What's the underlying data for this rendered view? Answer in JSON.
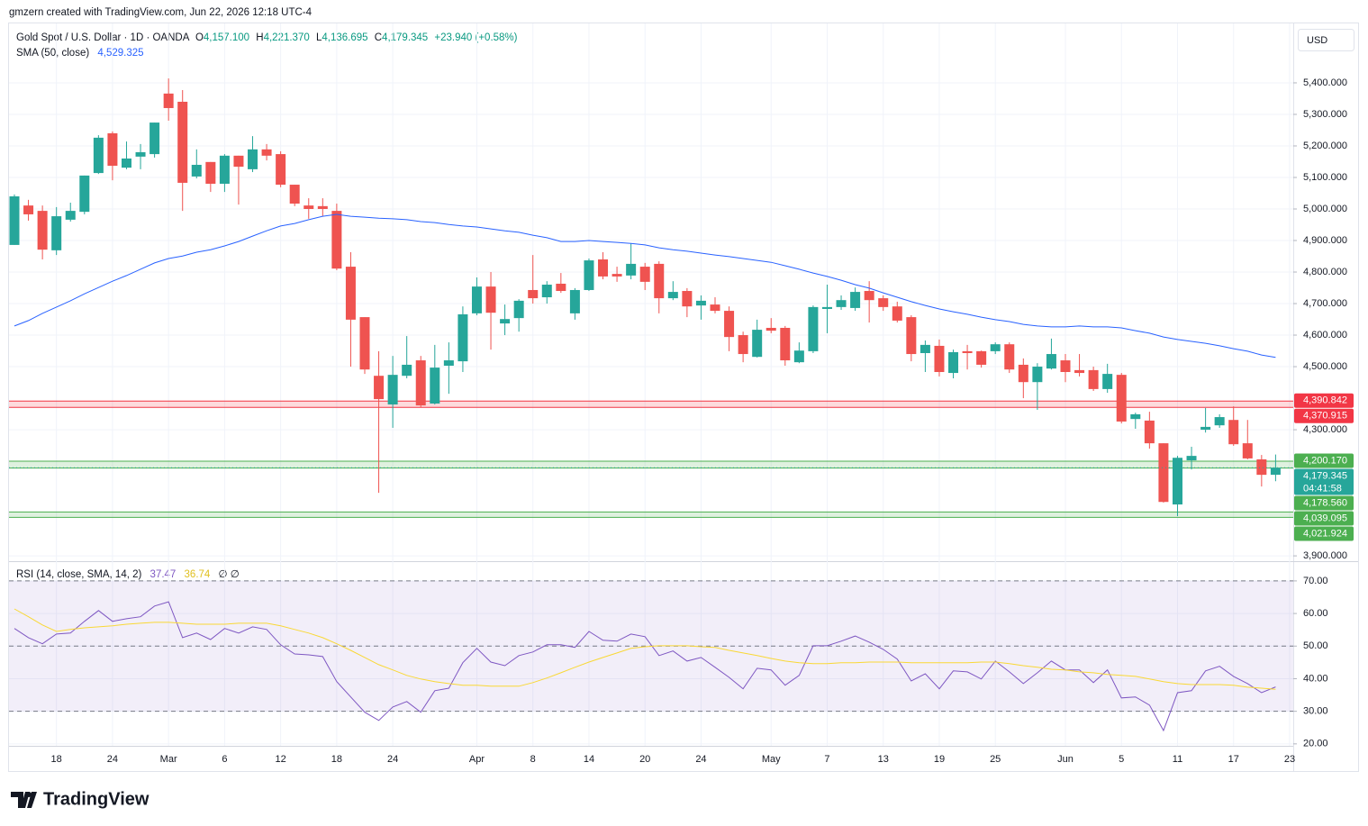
{
  "header": {
    "attribution": "gmzern created with TradingView.com, Jun 22, 2026 12:18 UTC-4",
    "symbol": "Gold Spot / U.S. Dollar · 1D · OANDA",
    "ohlc": [
      {
        "key": "O",
        "value": "4,157.100"
      },
      {
        "key": "H",
        "value": "4,221.370"
      },
      {
        "key": "L",
        "value": "4,136.695"
      },
      {
        "key": "C",
        "value": "4,179.345"
      }
    ],
    "change": "+23.940 (+0.58%)",
    "currency": "USD"
  },
  "chart_data": [
    {
      "type": "candlestick",
      "categories": [
        null,
        null,
        null,
        "18",
        null,
        null,
        null,
        "24",
        null,
        null,
        null,
        "Mar",
        null,
        null,
        null,
        "6",
        null,
        null,
        null,
        "12",
        null,
        null,
        null,
        "18",
        null,
        null,
        null,
        "24",
        null,
        null,
        null,
        null,
        null,
        "Apr",
        null,
        null,
        null,
        "8",
        null,
        null,
        null,
        "14",
        null,
        null,
        null,
        "20",
        null,
        null,
        null,
        "24",
        null,
        null,
        null,
        null,
        "May",
        null,
        null,
        null,
        "7",
        null,
        null,
        null,
        "13",
        null,
        null,
        null,
        "19",
        null,
        null,
        null,
        "25",
        null,
        null,
        null,
        null,
        "Jun",
        null,
        null,
        null,
        "5",
        null,
        null,
        null,
        "11",
        null,
        null,
        null,
        "17",
        null,
        null,
        null,
        "23"
      ],
      "open": [
        4886,
        5011,
        4994,
        4869,
        4966,
        4991,
        5114,
        5240,
        5131,
        5166,
        5174,
        5366,
        5340,
        5103,
        5149,
        5080,
        5169,
        5126,
        5189,
        5174,
        5077,
        5011,
        5009,
        4994,
        4817,
        4657,
        4471,
        4380,
        4471,
        4520,
        4383,
        4503,
        4517,
        4669,
        4754,
        4637,
        4654,
        4743,
        4720,
        4763,
        4669,
        4743,
        4840,
        4794,
        4789,
        4817,
        4826,
        4717,
        4740,
        4694,
        4697,
        4677,
        4600,
        4531,
        4623,
        4623,
        4514,
        4549,
        4683,
        4689,
        4686,
        4740,
        4717,
        4691,
        4657,
        4543,
        4566,
        4480,
        4549,
        4549,
        4549,
        4571,
        4506,
        4451,
        4494,
        4520,
        4489,
        4489,
        4429,
        4474,
        4334,
        4329,
        4257,
        4063,
        4203,
        4300,
        4314,
        4331,
        4257,
        4206,
        4157.1,
        null
      ],
      "high": [
        5046,
        5029,
        5011,
        5006,
        5020,
        5106,
        5234,
        5246,
        5214,
        5206,
        5274,
        5414,
        5377,
        5189,
        5149,
        5174,
        5169,
        5231,
        5206,
        5183,
        5077,
        5034,
        5034,
        5017,
        4863,
        4657,
        4549,
        4534,
        4597,
        4534,
        4569,
        4577,
        4691,
        4783,
        4800,
        4697,
        4714,
        4854,
        4771,
        4797,
        4749,
        4843,
        4863,
        4817,
        4891,
        4829,
        4834,
        4771,
        4749,
        4726,
        4720,
        4691,
        4611,
        4649,
        4654,
        4629,
        4577,
        4694,
        4760,
        4726,
        4751,
        4771,
        4726,
        4706,
        4663,
        4583,
        4586,
        4554,
        4569,
        4551,
        4577,
        4577,
        4526,
        4511,
        4589,
        4540,
        4540,
        4500,
        4509,
        4480,
        4354,
        4357,
        4257,
        4217,
        4246,
        4369,
        4349,
        4374,
        4331,
        4220,
        4221.37,
        null
      ],
      "low": [
        4886,
        4963,
        4840,
        4854,
        4960,
        4983,
        5111,
        5091,
        5126,
        5126,
        5163,
        5280,
        4994,
        5097,
        5054,
        5054,
        5014,
        5117,
        5154,
        5069,
        5009,
        4969,
        4977,
        4806,
        4500,
        4477,
        4100,
        4306,
        4463,
        4371,
        4380,
        4414,
        4483,
        4663,
        4554,
        4600,
        4611,
        4700,
        4700,
        4734,
        4649,
        4740,
        4777,
        4769,
        4777,
        4743,
        4669,
        4711,
        4657,
        4649,
        4669,
        4549,
        4514,
        4529,
        4606,
        4503,
        4511,
        4543,
        4606,
        4680,
        4677,
        4640,
        4677,
        4640,
        4517,
        4483,
        4469,
        4463,
        4491,
        4497,
        4540,
        4480,
        4400,
        4363,
        4491,
        4451,
        4469,
        4423,
        4417,
        4320,
        4303,
        4240,
        4069,
        4026,
        4174,
        4291,
        4306,
        4249,
        4206,
        4120,
        4136.695,
        null
      ],
      "close": [
        5040,
        4983,
        4871,
        4977,
        4994,
        5106,
        5226,
        5137,
        5160,
        5180,
        5274,
        5320,
        5083,
        5140,
        5080,
        5169,
        5134,
        5189,
        5169,
        5077,
        5017,
        5000,
        5000,
        4811,
        4649,
        4491,
        4397,
        4474,
        4506,
        4377,
        4497,
        4520,
        4666,
        4754,
        4671,
        4651,
        4709,
        4717,
        4760,
        4740,
        4743,
        4837,
        4786,
        4786,
        4826,
        4769,
        4717,
        4737,
        4691,
        4709,
        4677,
        4594,
        4540,
        4617,
        4614,
        4520,
        4551,
        4689,
        4689,
        4711,
        4737,
        4711,
        4689,
        4646,
        4540,
        4569,
        4483,
        4546,
        4543,
        4506,
        4571,
        4491,
        4451,
        4500,
        4540,
        4483,
        4480,
        4429,
        4477,
        4326,
        4349,
        4257,
        4071,
        4211,
        4217,
        4309,
        4340,
        4254,
        4209,
        4157,
        4179.345,
        null
      ],
      "up_color": "#26a69a",
      "down_color": "#ef5350",
      "last_price_label": "4,179.345",
      "countdown": "04:41:58",
      "series": [
        {
          "name": "SMA (50, close)",
          "color": "#2962ff",
          "value_label": "4,529.325",
          "values": [
            4629,
            4646,
            4669,
            4689,
            4709,
            4731,
            4751,
            4771,
            4789,
            4809,
            4829,
            4843,
            4851,
            4863,
            4871,
            4883,
            4897,
            4914,
            4931,
            4946,
            4954,
            4966,
            4977,
            4983,
            4977,
            4974,
            4971,
            4969,
            4966,
            4960,
            4957,
            4951,
            4946,
            4943,
            4937,
            4931,
            4926,
            4917,
            4909,
            4897,
            4897,
            4900,
            4897,
            4894,
            4891,
            4886,
            4877,
            4871,
            4866,
            4860,
            4854,
            4849,
            4843,
            4837,
            4831,
            4820,
            4809,
            4797,
            4786,
            4774,
            4760,
            4749,
            4734,
            4720,
            4706,
            4694,
            4683,
            4674,
            4666,
            4657,
            4649,
            4643,
            4634,
            4629,
            4626,
            4626,
            4629,
            4626,
            4626,
            4623,
            4614,
            4606,
            4594,
            4586,
            4580,
            4574,
            4566,
            4557,
            4549,
            4537,
            4529.325,
            null
          ]
        }
      ],
      "zones": [
        {
          "color": "#f23645",
          "low": {
            "value": 4370.915,
            "label": "4,370.915"
          },
          "high": {
            "value": 4390.842,
            "label": "4,390.842"
          }
        },
        {
          "color": "#4caf50",
          "low": {
            "value": 4178.56,
            "label": "4,178.560"
          },
          "high": {
            "value": 4200.17,
            "label": "4,200.170"
          }
        },
        {
          "color": "#4caf50",
          "low": {
            "value": 4021.924,
            "label": "4,021.924"
          },
          "high": {
            "value": 4039.095,
            "label": "4,039.095"
          }
        }
      ],
      "ylim": [
        3886,
        5577
      ],
      "yticks": [
        {
          "value": 3900,
          "label": "3,900.000"
        },
        {
          "value": 4300,
          "label": "4,300.000"
        },
        {
          "value": 4500,
          "label": "4,500.000"
        },
        {
          "value": 4600,
          "label": "4,600.000"
        },
        {
          "value": 4700,
          "label": "4,700.000"
        },
        {
          "value": 4800,
          "label": "4,800.000"
        },
        {
          "value": 4900,
          "label": "4,900.000"
        },
        {
          "value": 5000,
          "label": "5,000.000"
        },
        {
          "value": 5100,
          "label": "5,100.000"
        },
        {
          "value": 5200,
          "label": "5,200.000"
        },
        {
          "value": 5300,
          "label": "5,300.000"
        },
        {
          "value": 5400,
          "label": "5,400.000"
        }
      ],
      "grid": true
    },
    {
      "type": "line",
      "title": "RSI (14, close, SMA, 14, 2)",
      "extra": "∅ ∅",
      "series": [
        {
          "color": "#7e57c2",
          "value_label": "37.47",
          "values": [
            55.4,
            52.6,
            50.7,
            53.7,
            54.0,
            57.6,
            60.9,
            57.6,
            58.4,
            59.0,
            62.3,
            63.6,
            52.6,
            54.0,
            52.0,
            55.4,
            54.0,
            55.9,
            55.1,
            50.4,
            47.6,
            47.3,
            46.8,
            39.1,
            34.4,
            29.7,
            27.2,
            31.3,
            33.0,
            29.7,
            36.3,
            37.1,
            44.9,
            49.3,
            45.1,
            44.0,
            47.1,
            48.2,
            50.4,
            50.4,
            49.6,
            54.5,
            51.8,
            51.5,
            53.7,
            52.9,
            47.1,
            48.5,
            45.4,
            46.5,
            43.5,
            40.4,
            36.9,
            43.2,
            42.7,
            38.0,
            41.0,
            50.1,
            50.1,
            51.5,
            53.1,
            51.2,
            49.0,
            46.0,
            39.3,
            41.5,
            36.9,
            42.4,
            42.1,
            39.9,
            45.4,
            42.1,
            38.5,
            41.8,
            45.4,
            42.7,
            42.7,
            38.8,
            42.7,
            34.1,
            34.4,
            31.9,
            24.1,
            35.7,
            36.3,
            42.4,
            43.8,
            40.7,
            38.5,
            35.7,
            37.47,
            null
          ]
        },
        {
          "color": "#f9d835",
          "value_label": "36.74",
          "values": [
            61.4,
            59.0,
            56.5,
            54.5,
            55.1,
            55.6,
            55.9,
            56.2,
            56.7,
            57.0,
            57.3,
            57.3,
            57.0,
            56.7,
            56.7,
            56.7,
            57.0,
            57.0,
            57.0,
            56.2,
            55.1,
            54.0,
            52.6,
            50.7,
            48.7,
            46.5,
            44.3,
            42.7,
            41.0,
            39.9,
            39.1,
            38.5,
            38.0,
            38.0,
            37.7,
            37.7,
            37.7,
            38.8,
            40.2,
            41.8,
            43.5,
            45.1,
            46.5,
            47.9,
            49.3,
            49.8,
            50.1,
            50.1,
            50.1,
            49.8,
            49.6,
            48.7,
            47.9,
            47.1,
            46.2,
            45.4,
            44.9,
            44.6,
            44.6,
            44.9,
            44.9,
            45.1,
            45.1,
            45.1,
            44.9,
            44.9,
            44.9,
            44.9,
            44.9,
            45.1,
            45.1,
            44.6,
            44.0,
            43.5,
            42.9,
            42.7,
            42.1,
            41.8,
            41.3,
            41.0,
            40.7,
            39.9,
            39.1,
            38.5,
            38.2,
            38.2,
            38.2,
            38.0,
            37.4,
            37.1,
            36.74,
            null
          ]
        }
      ],
      "band": [
        30,
        70
      ],
      "midline": 50,
      "band_color": "#7e57c2",
      "ylim": [
        19.4,
        75.5
      ],
      "yticks": [
        {
          "value": 20,
          "label": "20.00"
        },
        {
          "value": 30,
          "label": "30.00"
        },
        {
          "value": 40,
          "label": "40.00"
        },
        {
          "value": 50,
          "label": "50.00"
        },
        {
          "value": 60,
          "label": "60.00"
        },
        {
          "value": 70,
          "label": "70.00"
        }
      ],
      "grid": true
    }
  ],
  "footer": {
    "brand": "TradingView"
  }
}
